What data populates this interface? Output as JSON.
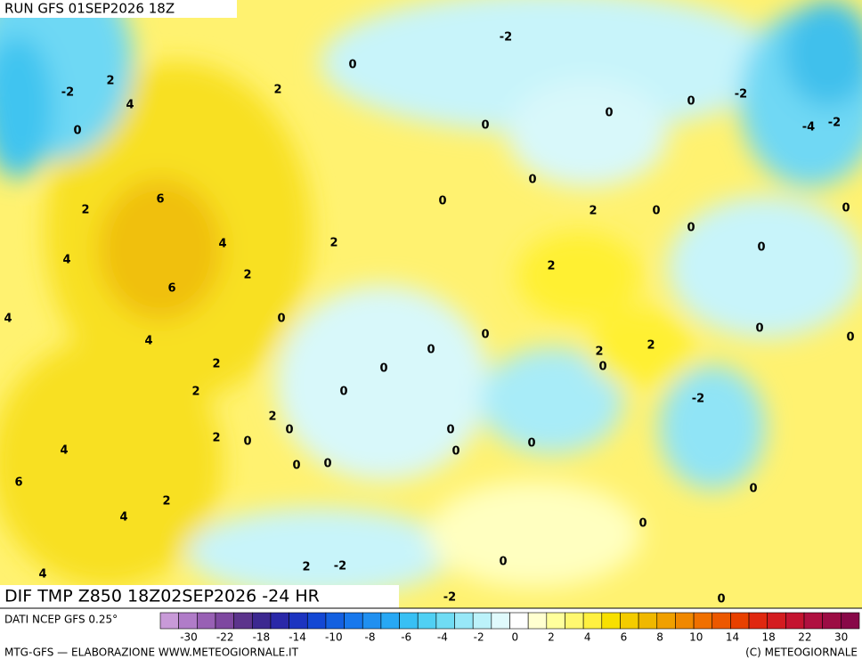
{
  "header": {
    "run": "RUN GFS 01SEP2026 18Z"
  },
  "map": {
    "contour_labels": [
      -2,
      2,
      4,
      0,
      2,
      0,
      -2,
      0,
      0,
      0,
      -2,
      -4,
      -2,
      2,
      6,
      0,
      0,
      2,
      0,
      0,
      0,
      4,
      2,
      4,
      2,
      6,
      2,
      0,
      4,
      0,
      4,
      0,
      0,
      0,
      0,
      2,
      0,
      2,
      2,
      0,
      2,
      0,
      -2,
      2,
      0,
      0,
      2,
      0,
      0,
      4,
      0,
      0,
      0,
      6,
      0,
      2,
      4,
      0,
      0,
      2,
      -2,
      4,
      -2,
      0
    ]
  },
  "footer": {
    "title": "DIF TMP Z850 18Z02SEP2026 -24 HR",
    "source": "DATI NCEP GFS 0.25°",
    "credit": "MTG-GFS — ELABORAZIONE WWW.METEOGIORNALE.IT",
    "copyright": "(C) METEOGIORNALE"
  },
  "colorbar": {
    "labels": [
      -30,
      -22,
      -18,
      -14,
      -10,
      -8,
      -6,
      -4,
      -2,
      0,
      2,
      4,
      6,
      8,
      10,
      14,
      18,
      22,
      30
    ],
    "colors": [
      "#c89ad8",
      "#b07cc8",
      "#9860b4",
      "#7e48a0",
      "#5c348c",
      "#3c2890",
      "#2a28a8",
      "#1c34c0",
      "#1448d4",
      "#1460e0",
      "#1878ec",
      "#2090f0",
      "#28a8f4",
      "#38c0f4",
      "#50d0f4",
      "#70dcf4",
      "#98e8f8",
      "#bcf2fa",
      "#e0fafc",
      "#ffffff",
      "#ffffd0",
      "#ffff9c",
      "#fff870",
      "#fff040",
      "#f8e000",
      "#f4cc00",
      "#f0b800",
      "#f0a000",
      "#f08800",
      "#f07000",
      "#ec5800",
      "#e84000",
      "#e02810",
      "#d41c20",
      "#c41430",
      "#b01040",
      "#9c0c44",
      "#880848"
    ]
  }
}
